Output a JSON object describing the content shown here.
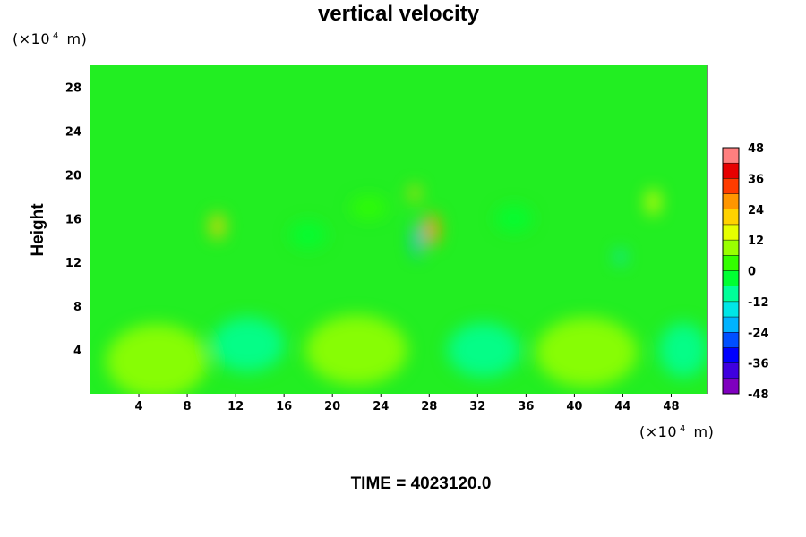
{
  "chart_data": {
    "type": "heatmap",
    "title": "vertical velocity",
    "ylabel": "Height",
    "x_unit": {
      "prefix": "(×10",
      "exp": "4",
      "suffix": " m)"
    },
    "y_unit": {
      "prefix": "(×10",
      "exp": "4",
      "suffix": " m)"
    },
    "x_ticks": [
      4,
      8,
      12,
      16,
      20,
      24,
      28,
      32,
      36,
      40,
      44,
      48
    ],
    "y_ticks": [
      4,
      8,
      12,
      16,
      20,
      24,
      28
    ],
    "xlim": [
      0,
      51
    ],
    "ylim": [
      0,
      30
    ],
    "colorbar": {
      "ticks": [
        48,
        36,
        24,
        12,
        0,
        -12,
        -24,
        -36,
        -48
      ],
      "range": [
        -48,
        48
      ],
      "colors": [
        "#7f00bf",
        "#3f00df",
        "#0000ff",
        "#004fff",
        "#00b3ff",
        "#00e6e6",
        "#00ff99",
        "#00ff33",
        "#33ff00",
        "#99ff00",
        "#e6ff00",
        "#ffd200",
        "#ff9600",
        "#ff3c00",
        "#e60000",
        "#ff7f7f"
      ]
    },
    "background_color": "#22ee22",
    "features": [
      {
        "x": 5.5,
        "y": 3,
        "rx": 4.2,
        "ry": 3.4,
        "value": 10
      },
      {
        "x": 22,
        "y": 4,
        "rx": 4.2,
        "ry": 3.2,
        "value": 8
      },
      {
        "x": 41,
        "y": 3.8,
        "rx": 4.2,
        "ry": 3.2,
        "value": 8
      },
      {
        "x": 13,
        "y": 4.5,
        "rx": 3.0,
        "ry": 2.5,
        "value": -10
      },
      {
        "x": 32.5,
        "y": 4,
        "rx": 3.0,
        "ry": 2.5,
        "value": -10
      },
      {
        "x": 49,
        "y": 4,
        "rx": 2.0,
        "ry": 2.5,
        "value": -9
      },
      {
        "x": 10.5,
        "y": 15.3,
        "rx": 0.6,
        "ry": 1.2,
        "value": 22
      },
      {
        "x": 28.2,
        "y": 15,
        "rx": 0.7,
        "ry": 1.5,
        "value": 28
      },
      {
        "x": 27,
        "y": 14,
        "rx": 0.4,
        "ry": 1.6,
        "value": -22
      },
      {
        "x": 26.8,
        "y": 18.3,
        "rx": 0.4,
        "ry": 0.8,
        "value": 18
      },
      {
        "x": 46.5,
        "y": 17.5,
        "rx": 0.6,
        "ry": 1.2,
        "value": 16
      },
      {
        "x": 43.8,
        "y": 12.5,
        "rx": 0.4,
        "ry": 0.7,
        "value": -14
      },
      {
        "x": 18,
        "y": 14.5,
        "rx": 1.5,
        "ry": 1.2,
        "value": -6
      },
      {
        "x": 35,
        "y": 16,
        "rx": 1.5,
        "ry": 1.2,
        "value": -5
      },
      {
        "x": 23,
        "y": 17,
        "rx": 1.5,
        "ry": 1.0,
        "value": 5
      }
    ]
  },
  "time_label": "TIME = 4023120.0"
}
